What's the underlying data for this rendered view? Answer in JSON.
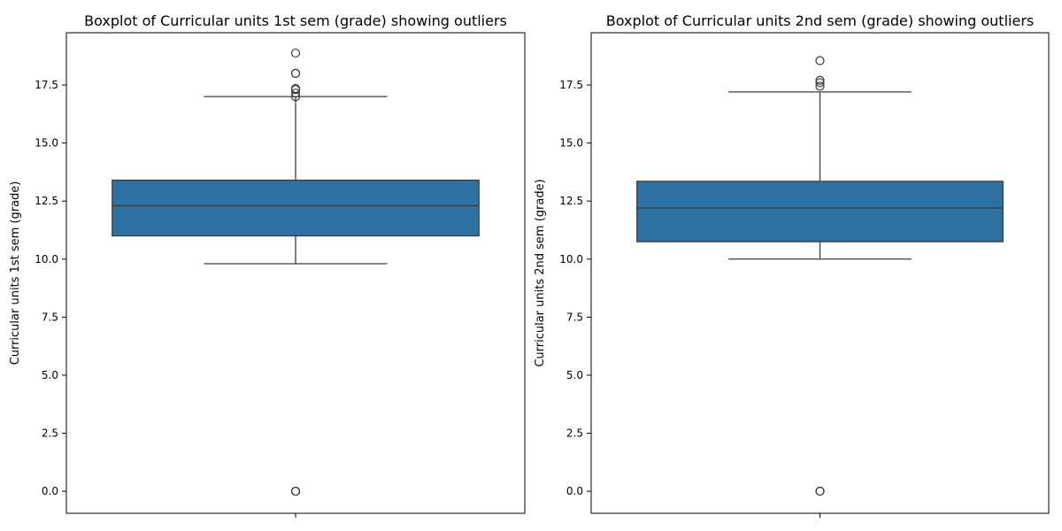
{
  "chart_data": [
    {
      "type": "box",
      "title": "Boxplot of Curricular units 1st sem (grade) showing outliers",
      "xlabel": "",
      "ylabel": "Curricular units 1st sem (grade)",
      "ylim": [
        -0.95,
        19.75
      ],
      "yticks": [
        0.0,
        2.5,
        5.0,
        7.5,
        10.0,
        12.5,
        15.0,
        17.5
      ],
      "ytick_labels": [
        "0.0",
        "2.5",
        "5.0",
        "7.5",
        "10.0",
        "12.5",
        "15.0",
        "17.5"
      ],
      "grid": false,
      "box_color": "#2e71a3",
      "line_color": "#3d3d3d",
      "box": {
        "whisker_low": 9.8,
        "q1": 11.0,
        "median": 12.3,
        "q3": 13.4,
        "whisker_high": 17.0
      },
      "outliers": [
        0.0,
        0.0,
        0.0,
        17.0,
        17.15,
        17.3,
        17.35,
        18.0,
        18.0,
        18.875
      ]
    },
    {
      "type": "box",
      "title": "Boxplot of Curricular units 2nd sem (grade) showing outliers",
      "xlabel": "",
      "ylabel": "Curricular units 2nd sem (grade)",
      "ylim": [
        -0.95,
        19.75
      ],
      "yticks": [
        0.0,
        2.5,
        5.0,
        7.5,
        10.0,
        12.5,
        15.0,
        17.5
      ],
      "ytick_labels": [
        "0.0",
        "2.5",
        "5.0",
        "7.5",
        "10.0",
        "12.5",
        "15.0",
        "17.5"
      ],
      "grid": false,
      "box_color": "#2e71a3",
      "line_color": "#3d3d3d",
      "box": {
        "whisker_low": 10.0,
        "q1": 10.75,
        "median": 12.2,
        "q3": 13.35,
        "whisker_high": 17.2
      },
      "outliers": [
        0.0,
        0.0,
        0.0,
        17.45,
        17.6,
        17.7,
        18.55
      ]
    }
  ]
}
